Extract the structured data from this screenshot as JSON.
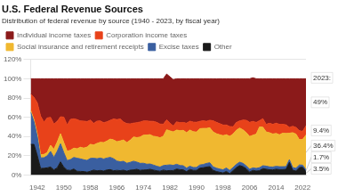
{
  "chart_data": {
    "type": "area",
    "stacked": true,
    "title": "U.S. Federal Revenue Sources",
    "subtitle": "Distribution of federal revenue by source (1940 - 2023, by fiscal year)",
    "x": [
      1940,
      1941,
      1942,
      1943,
      1944,
      1945,
      1946,
      1947,
      1948,
      1949,
      1950,
      1951,
      1952,
      1953,
      1954,
      1955,
      1956,
      1957,
      1958,
      1959,
      1960,
      1961,
      1962,
      1963,
      1964,
      1965,
      1966,
      1967,
      1968,
      1969,
      1970,
      1971,
      1972,
      1973,
      1974,
      1975,
      1976,
      1977,
      1978,
      1979,
      1980,
      1981,
      1982,
      1983,
      1984,
      1985,
      1986,
      1987,
      1988,
      1989,
      1990,
      1991,
      1992,
      1993,
      1994,
      1995,
      1996,
      1997,
      1998,
      1999,
      2000,
      2001,
      2002,
      2003,
      2004,
      2005,
      2006,
      2007,
      2008,
      2009,
      2010,
      2011,
      2012,
      2013,
      2014,
      2015,
      2016,
      2017,
      2018,
      2019,
      2020,
      2021,
      2022,
      2023
    ],
    "xlim": [
      1940,
      2023
    ],
    "xticks": [
      1942,
      1950,
      1958,
      1966,
      1974,
      1982,
      1990,
      1998,
      2006,
      2014,
      2022
    ],
    "ylim": [
      0,
      120
    ],
    "yticks": [
      {
        "value": 0,
        "label": "0%"
      },
      {
        "value": 20,
        "label": "20%"
      },
      {
        "value": 40,
        "label": "40%"
      },
      {
        "value": 60,
        "label": "60%"
      },
      {
        "value": 80,
        "label": "80%"
      },
      {
        "value": 100,
        "label": "100%"
      },
      {
        "value": 120,
        "label": "120%"
      }
    ],
    "grid": "y",
    "legend": "top",
    "series": [
      {
        "name": "Other",
        "color": "#1A1A1A",
        "values": [
          31.8,
          31.8,
          20.2,
          6.7,
          7.0,
          7.4,
          8.3,
          5.3,
          7.4,
          13.6,
          8.1,
          5.1,
          4.7,
          6.2,
          3.9,
          3.7,
          3.6,
          2.9,
          3.9,
          5.1,
          4.3,
          4.7,
          4.1,
          5.2,
          5.6,
          4.4,
          4.8,
          4.5,
          5.0,
          4.0,
          5.0,
          5.3,
          5.9,
          4.8,
          5.2,
          5.3,
          5.9,
          5.1,
          4.4,
          3.9,
          5.1,
          4.4,
          4.6,
          4.6,
          6.2,
          5.5,
          5.3,
          3.5,
          5.8,
          4.8,
          4.8,
          7.1,
          7.5,
          8.2,
          8.7,
          4.8,
          3.6,
          2.8,
          2.1,
          3.7,
          1.3,
          4.5,
          7.6,
          9.8,
          8.7,
          6.5,
          3.0,
          4.8,
          4.1,
          4.5,
          6.6,
          6.0,
          5.4,
          5.3,
          6.0,
          5.6,
          5.6,
          5.9,
          13.1,
          4.9,
          4.1,
          7.7,
          8.1,
          3.5
        ]
      },
      {
        "name": "Excise taxes",
        "color": "#3A5FA0",
        "values": [
          33.6,
          23.4,
          19.7,
          11.1,
          10.9,
          12.5,
          16.2,
          13.0,
          17.1,
          18.8,
          15.0,
          9.8,
          11.3,
          12.0,
          13.5,
          13.0,
          12.2,
          12.2,
          13.3,
          12.3,
          12.6,
          12.9,
          12.5,
          12.4,
          12.7,
          12.5,
          9.7,
          9.2,
          9.2,
          8.2,
          8.1,
          9.0,
          7.5,
          7.3,
          7.0,
          5.9,
          5.5,
          5.2,
          4.7,
          4.3,
          4.7,
          5.8,
          5.9,
          5.4,
          4.9,
          4.4,
          4.3,
          3.6,
          3.3,
          3.0,
          3.0,
          3.3,
          3.4,
          3.8,
          4.0,
          3.6,
          3.5,
          3.3,
          3.3,
          3.6,
          3.4,
          3.2,
          3.4,
          3.5,
          3.4,
          3.0,
          2.9,
          2.6,
          2.7,
          3.1,
          3.0,
          3.2,
          3.0,
          3.0,
          3.0,
          3.0,
          3.0,
          2.8,
          2.8,
          2.7,
          2.9,
          2.7,
          2.1,
          1.7
        ]
      },
      {
        "name": "Social insurance and retirement receipts",
        "color": "#F0B830",
        "values": [
          1.9,
          2.4,
          2.9,
          3.3,
          3.5,
          3.5,
          6.4,
          8.4,
          9.6,
          10.5,
          10.5,
          9.8,
          9.7,
          9.7,
          9.9,
          12.1,
          12.2,
          13.9,
          14.7,
          13.8,
          15.9,
          16.4,
          17.1,
          17.7,
          19.0,
          19.5,
          20.1,
          21.7,
          22.2,
          21.5,
          23.0,
          25.3,
          25.4,
          27.3,
          29.2,
          30.3,
          30.5,
          30.0,
          30.6,
          30.5,
          30.5,
          36.8,
          35.3,
          34.8,
          35.6,
          36.1,
          36.8,
          36.9,
          37.6,
          37.2,
          36.8,
          37.7,
          37.5,
          36.4,
          36.4,
          36.3,
          35.8,
          35.7,
          35.5,
          34.5,
          35.5,
          34.8,
          35.5,
          35.5,
          34.8,
          34.5,
          34.1,
          33.9,
          35.7,
          42.3,
          40.0,
          35.5,
          35.5,
          34.3,
          34.2,
          33.2,
          34.9,
          34.4,
          27.5,
          36.4,
          35.5,
          26.2,
          26.7,
          36.4
        ]
      },
      {
        "name": "Corporation income taxes",
        "color": "#E8421A",
        "values": [
          17.0,
          23.1,
          32.2,
          40.1,
          33.6,
          35.9,
          29.0,
          26.3,
          21.5,
          17.6,
          26.5,
          27.3,
          32.1,
          30.5,
          30.3,
          27.3,
          28.0,
          26.5,
          25.1,
          22.4,
          23.2,
          22.2,
          20.6,
          20.0,
          19.5,
          21.8,
          23.0,
          22.8,
          18.7,
          19.6,
          17.0,
          14.3,
          15.5,
          15.7,
          14.7,
          14.6,
          13.9,
          15.4,
          15.0,
          14.2,
          12.5,
          10.2,
          8.0,
          6.2,
          8.5,
          8.4,
          8.2,
          9.8,
          9.2,
          9.9,
          10.2,
          7.6,
          8.0,
          7.4,
          7.8,
          11.6,
          11.8,
          11.5,
          11.0,
          10.1,
          10.2,
          7.6,
          8.0,
          7.4,
          10.1,
          12.9,
          14.7,
          14.4,
          12.1,
          6.6,
          8.9,
          7.9,
          9.9,
          10.0,
          10.6,
          10.8,
          9.2,
          9.0,
          6.1,
          6.6,
          7.0,
          9.3,
          8.5,
          9.4
        ]
      },
      {
        "name": "Individual income taxes",
        "color": "#8B1A1A",
        "values": [
          15.7,
          19.3,
          25.0,
          38.8,
          45.0,
          40.7,
          40.1,
          47.0,
          44.4,
          39.5,
          39.9,
          48.0,
          42.2,
          41.6,
          42.4,
          43.9,
          44.0,
          44.5,
          43.0,
          46.4,
          44.0,
          43.8,
          45.7,
          44.7,
          43.2,
          41.8,
          42.4,
          41.8,
          44.9,
          46.7,
          46.9,
          46.1,
          45.7,
          44.9,
          43.9,
          43.9,
          44.2,
          44.3,
          45.3,
          47.1,
          47.2,
          47.7,
          48.2,
          48.1,
          44.8,
          45.6,
          45.4,
          46.2,
          44.1,
          45.1,
          45.2,
          44.3,
          43.6,
          44.2,
          43.1,
          43.7,
          45.2,
          46.7,
          48.1,
          48.1,
          49.6,
          49.9,
          45.5,
          43.8,
          43.0,
          43.1,
          45.3,
          45.3,
          45.4,
          43.5,
          41.5,
          47.4,
          46.2,
          47.4,
          46.2,
          47.4,
          47.3,
          47.9,
          50.5,
          49.4,
          50.5,
          54.1,
          54.6,
          49.0
        ]
      }
    ],
    "annotations": [
      {
        "text": "2023:",
        "x": 2023,
        "y": 101
      },
      {
        "text": "49%",
        "x": 2023,
        "y": 75.5
      },
      {
        "text": "9.4%",
        "x": 2023,
        "y": 46.3
      },
      {
        "text": "36.4%",
        "x": 2023,
        "y": 23.4
      },
      {
        "text": "1.7%",
        "x": 2023,
        "y": 4.35
      },
      {
        "text": "3.5%",
        "x": 2023,
        "y": 1.75
      }
    ]
  }
}
